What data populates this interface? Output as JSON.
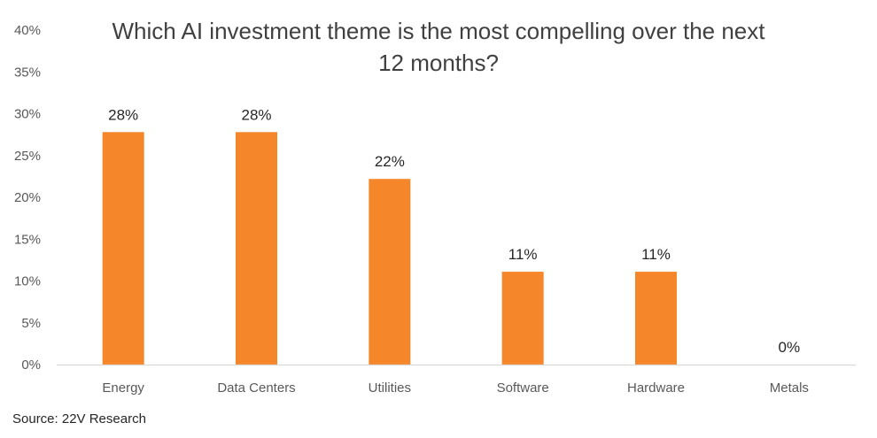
{
  "chart_data": {
    "type": "bar",
    "title_lines": [
      "Which AI investment theme is the most compelling over the next",
      "12 months?"
    ],
    "categories": [
      "Energy",
      "Data Centers",
      "Utilities",
      "Software",
      "Hardware",
      "Metals"
    ],
    "values": [
      0.278,
      0.278,
      0.222,
      0.111,
      0.111,
      0
    ],
    "data_labels": [
      "28%",
      "28%",
      "22%",
      "11%",
      "11%",
      "0%"
    ],
    "ylim": [
      0,
      0.4
    ],
    "yticks": [
      0,
      0.05,
      0.1,
      0.15,
      0.2,
      0.25,
      0.3,
      0.35,
      0.4
    ],
    "ytick_labels": [
      "0%",
      "5%",
      "10%",
      "15%",
      "20%",
      "25%",
      "30%",
      "35%",
      "40%"
    ],
    "bar_color": "#F5862A",
    "axis_color": "#D9D9D9",
    "grid": false,
    "legend": "none",
    "source": "Source: 22V Research"
  }
}
